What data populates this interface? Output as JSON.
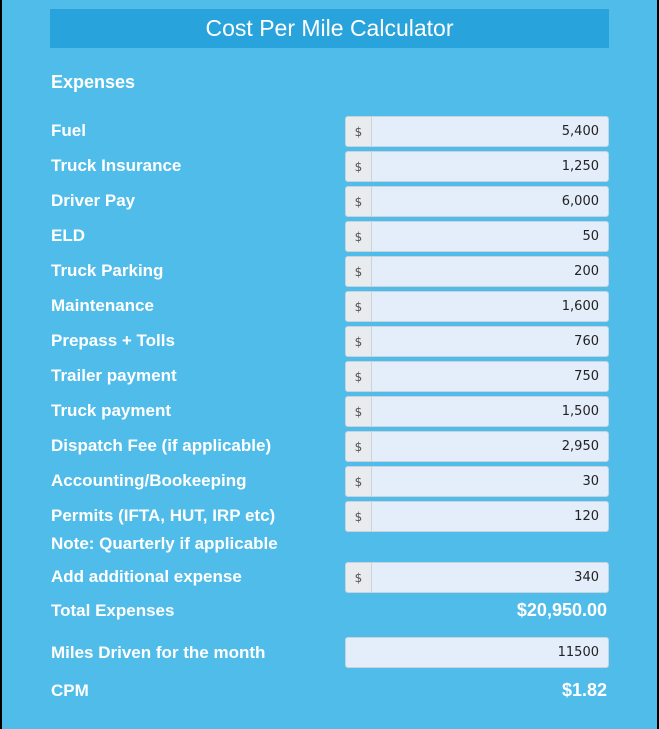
{
  "title": "Cost Per Mile Calculator",
  "section_heading": "Expenses",
  "currency_prefix": "$",
  "expenses": [
    {
      "label": "Fuel",
      "value": "5,400"
    },
    {
      "label": "Truck Insurance",
      "value": "1,250"
    },
    {
      "label": "Driver Pay",
      "value": "6,000"
    },
    {
      "label": "ELD",
      "value": "50"
    },
    {
      "label": "Truck Parking",
      "value": "200"
    },
    {
      "label": "Maintenance",
      "value": "1,600"
    },
    {
      "label": "Prepass + Tolls",
      "value": "760"
    },
    {
      "label": "Trailer payment",
      "value": "750"
    },
    {
      "label": "Truck payment",
      "value": "1,500"
    },
    {
      "label": "Dispatch Fee (if applicable)",
      "value": "2,950"
    },
    {
      "label": "Accounting/Bookeeping",
      "value": "30"
    },
    {
      "label": "Permits (IFTA, HUT, IRP etc)",
      "value": "120"
    },
    {
      "label": "Add additional expense",
      "value": "340"
    }
  ],
  "permits_note": "Note: Quarterly if applicable",
  "total": {
    "label": "Total Expenses",
    "value": "$20,950.00"
  },
  "miles": {
    "label": "Miles Driven for the month",
    "value": "11500"
  },
  "cpm": {
    "label": "CPM",
    "value": "$1.82"
  }
}
